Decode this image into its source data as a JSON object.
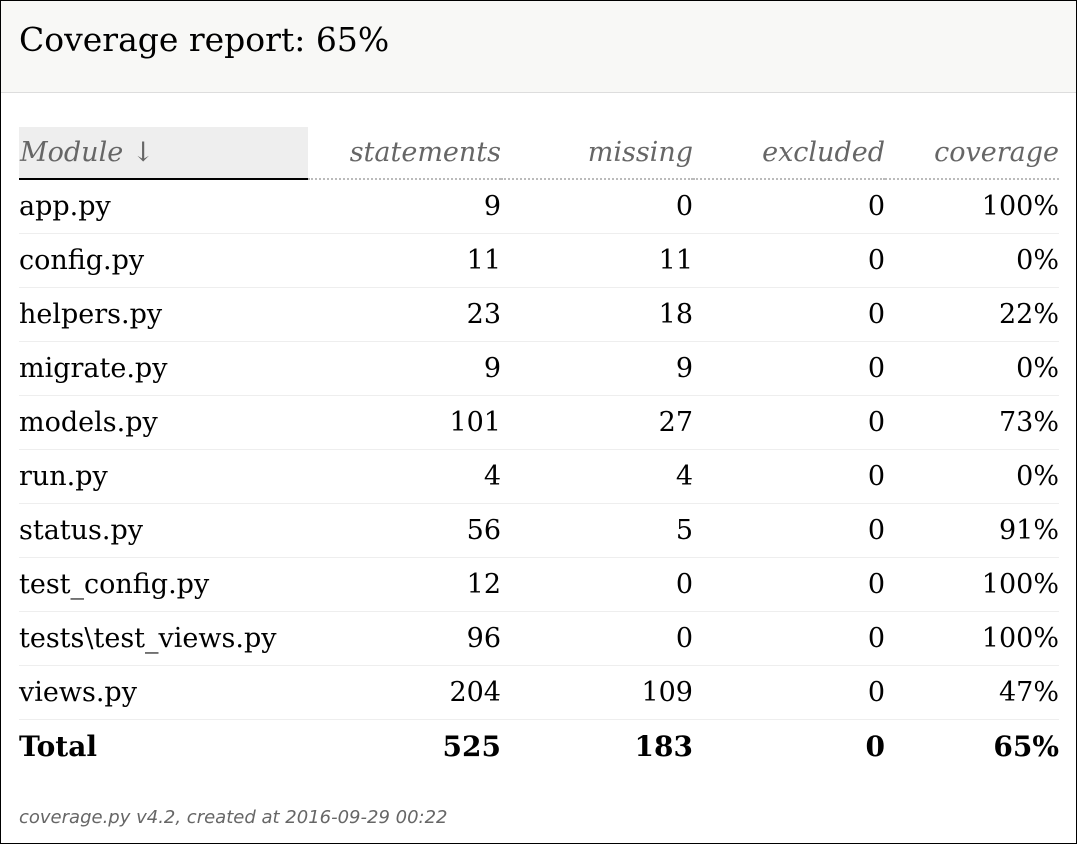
{
  "header": {
    "title": "Coverage report: 65%"
  },
  "table": {
    "columns": {
      "module": "Module",
      "sort_arrow": "↓",
      "statements": "statements",
      "missing": "missing",
      "excluded": "excluded",
      "coverage": "coverage"
    },
    "rows": [
      {
        "module": "app.py",
        "statements": "9",
        "missing": "0",
        "excluded": "0",
        "coverage": "100%"
      },
      {
        "module": "config.py",
        "statements": "11",
        "missing": "11",
        "excluded": "0",
        "coverage": "0%"
      },
      {
        "module": "helpers.py",
        "statements": "23",
        "missing": "18",
        "excluded": "0",
        "coverage": "22%"
      },
      {
        "module": "migrate.py",
        "statements": "9",
        "missing": "9",
        "excluded": "0",
        "coverage": "0%"
      },
      {
        "module": "models.py",
        "statements": "101",
        "missing": "27",
        "excluded": "0",
        "coverage": "73%"
      },
      {
        "module": "run.py",
        "statements": "4",
        "missing": "4",
        "excluded": "0",
        "coverage": "0%"
      },
      {
        "module": "status.py",
        "statements": "56",
        "missing": "5",
        "excluded": "0",
        "coverage": "91%"
      },
      {
        "module": "test_config.py",
        "statements": "12",
        "missing": "0",
        "excluded": "0",
        "coverage": "100%"
      },
      {
        "module": "tests\\test_views.py",
        "statements": "96",
        "missing": "0",
        "excluded": "0",
        "coverage": "100%"
      },
      {
        "module": "views.py",
        "statements": "204",
        "missing": "109",
        "excluded": "0",
        "coverage": "47%"
      }
    ],
    "total": {
      "module": "Total",
      "statements": "525",
      "missing": "183",
      "excluded": "0",
      "coverage": "65%"
    }
  },
  "footer": {
    "text": "coverage.py v4.2, created at 2016-09-29 00:22"
  }
}
